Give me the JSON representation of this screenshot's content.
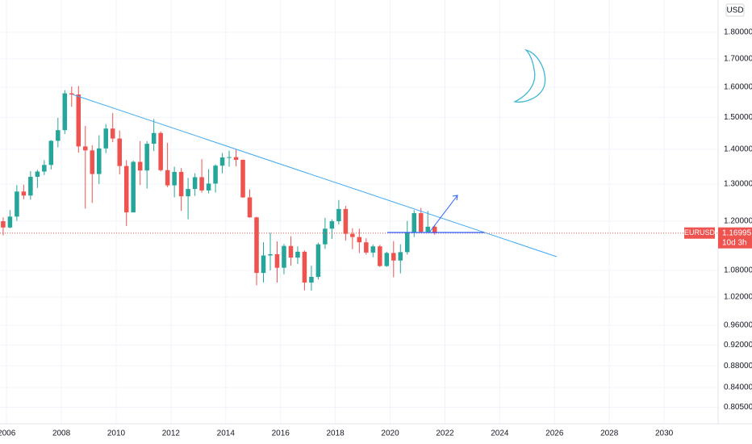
{
  "chart_data": {
    "type": "candlestick",
    "symbol": "EURUSD",
    "currency": "USD",
    "countdown": "10d 3h",
    "last_price": 1.16995,
    "log_scale": true,
    "grid": true,
    "up_color": "#26a69a",
    "down_color": "#ef5350",
    "xlim": [
      2005.76,
      2031.97
    ],
    "xticks": [
      2006,
      2008,
      2010,
      2012,
      2014,
      2016,
      2018,
      2020,
      2022,
      2024,
      2026,
      2028,
      2030
    ],
    "ylim": [
      0.777,
      1.929
    ],
    "yticks": [
      {
        "value": 1.8,
        "label": "1.80000"
      },
      {
        "value": 1.7,
        "label": "1.70000"
      },
      {
        "value": 1.6,
        "label": "1.60000"
      },
      {
        "value": 1.5,
        "label": "1.50000"
      },
      {
        "value": 1.4,
        "label": "1.40000"
      },
      {
        "value": 1.3,
        "label": "1.30000"
      },
      {
        "value": 1.2,
        "label": "1.20000"
      },
      {
        "value": 1.08,
        "label": "1.08000"
      },
      {
        "value": 1.02,
        "label": "1.02000"
      },
      {
        "value": 0.96,
        "label": "0.96000"
      },
      {
        "value": 0.92,
        "label": "0.92000"
      },
      {
        "value": 0.88,
        "label": "0.88000"
      },
      {
        "value": 0.84,
        "label": "0.84000"
      },
      {
        "value": 0.805,
        "label": "0.80500"
      }
    ],
    "x": [
      2005.75,
      2006,
      2006.25,
      2006.5,
      2006.75,
      2007,
      2007.25,
      2007.5,
      2007.75,
      2008,
      2008.25,
      2008.5,
      2008.75,
      2009,
      2009.25,
      2009.5,
      2009.75,
      2010,
      2010.25,
      2010.5,
      2010.75,
      2011,
      2011.25,
      2011.5,
      2011.75,
      2012,
      2012.25,
      2012.5,
      2012.75,
      2013,
      2013.25,
      2013.5,
      2013.75,
      2014,
      2014.25,
      2014.5,
      2014.75,
      2015,
      2015.25,
      2015.5,
      2015.75,
      2016,
      2016.25,
      2016.5,
      2016.75,
      2017,
      2017.25,
      2017.5,
      2017.75,
      2018,
      2018.25,
      2018.5,
      2018.75,
      2019,
      2019.25,
      2019.5,
      2019.75,
      2020,
      2020.25,
      2020.5,
      2020.75,
      2021,
      2021.25,
      2021.5
    ],
    "open": [
      1.2,
      1.184,
      1.212,
      1.279,
      1.268,
      1.32,
      1.335,
      1.354,
      1.426,
      1.459,
      1.579,
      1.575,
      1.409,
      1.397,
      1.328,
      1.403,
      1.464,
      1.433,
      1.351,
      1.223,
      1.363,
      1.338,
      1.417,
      1.45,
      1.339,
      1.296,
      1.334,
      1.266,
      1.286,
      1.319,
      1.282,
      1.301,
      1.352,
      1.376,
      1.377,
      1.369,
      1.263,
      1.21,
      1.074,
      1.115,
      1.118,
      1.086,
      1.138,
      1.11,
      1.124,
      1.052,
      1.065,
      1.142,
      1.181,
      1.2,
      1.232,
      1.168,
      1.16,
      1.147,
      1.122,
      1.137,
      1.09,
      1.121,
      1.103,
      1.123,
      1.172,
      1.221,
      1.173,
      1.186
    ],
    "high": [
      1.21,
      1.229,
      1.297,
      1.298,
      1.336,
      1.34,
      1.368,
      1.428,
      1.498,
      1.59,
      1.602,
      1.604,
      1.472,
      1.412,
      1.443,
      1.478,
      1.514,
      1.458,
      1.368,
      1.367,
      1.425,
      1.425,
      1.494,
      1.455,
      1.42,
      1.349,
      1.345,
      1.317,
      1.33,
      1.371,
      1.342,
      1.356,
      1.389,
      1.396,
      1.399,
      1.37,
      1.285,
      1.212,
      1.147,
      1.171,
      1.149,
      1.143,
      1.162,
      1.137,
      1.127,
      1.091,
      1.146,
      1.209,
      1.205,
      1.256,
      1.24,
      1.182,
      1.181,
      1.157,
      1.141,
      1.141,
      1.124,
      1.15,
      1.142,
      1.201,
      1.229,
      1.235,
      1.227,
      1.19
    ],
    "low": [
      1.164,
      1.182,
      1.201,
      1.258,
      1.257,
      1.289,
      1.325,
      1.341,
      1.406,
      1.447,
      1.534,
      1.39,
      1.233,
      1.248,
      1.3,
      1.389,
      1.422,
      1.327,
      1.188,
      1.225,
      1.297,
      1.287,
      1.395,
      1.335,
      1.291,
      1.263,
      1.227,
      1.205,
      1.267,
      1.276,
      1.274,
      1.276,
      1.33,
      1.349,
      1.35,
      1.262,
      1.209,
      1.046,
      1.052,
      1.08,
      1.052,
      1.071,
      1.091,
      1.095,
      1.035,
      1.034,
      1.059,
      1.131,
      1.155,
      1.192,
      1.151,
      1.13,
      1.121,
      1.117,
      1.111,
      1.088,
      1.088,
      1.064,
      1.073,
      1.117,
      1.16,
      1.17,
      1.17,
      1.166
    ],
    "close": [
      1.184,
      1.212,
      1.279,
      1.268,
      1.32,
      1.335,
      1.354,
      1.426,
      1.459,
      1.579,
      1.575,
      1.409,
      1.397,
      1.328,
      1.403,
      1.464,
      1.433,
      1.351,
      1.223,
      1.363,
      1.338,
      1.417,
      1.45,
      1.339,
      1.296,
      1.334,
      1.266,
      1.286,
      1.319,
      1.282,
      1.301,
      1.352,
      1.376,
      1.377,
      1.369,
      1.263,
      1.21,
      1.074,
      1.115,
      1.118,
      1.086,
      1.138,
      1.11,
      1.124,
      1.052,
      1.065,
      1.142,
      1.181,
      1.2,
      1.232,
      1.168,
      1.16,
      1.147,
      1.122,
      1.137,
      1.09,
      1.121,
      1.103,
      1.123,
      1.172,
      1.221,
      1.173,
      1.186,
      1.16995
    ]
  }
}
